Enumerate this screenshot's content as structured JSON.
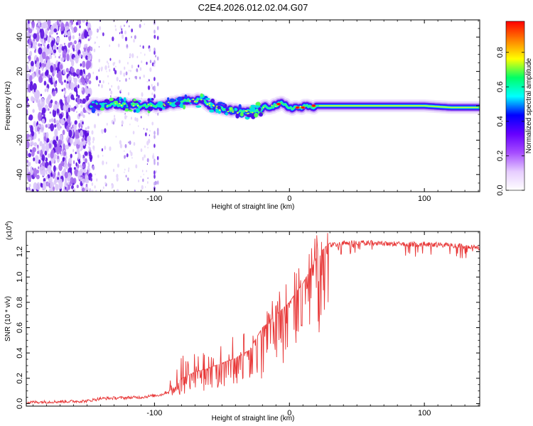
{
  "title": "C2E4.2026.012.02.04.G07",
  "chart_data": [
    {
      "type": "heatmap",
      "name": "spectrogram",
      "xlabel": "Height of straight line (km)",
      "ylabel": "Frequency (Hz)",
      "xlim": [
        -195,
        141
      ],
      "ylim": [
        -50,
        50
      ],
      "xticks": [
        -100,
        0,
        100
      ],
      "xtick_labels": [
        "-100",
        "0",
        "100"
      ],
      "yticks": [
        -40,
        -20,
        0,
        20,
        40
      ],
      "ytick_labels": [
        "-40",
        "-20",
        "0",
        "20",
        "40"
      ],
      "colorbar": {
        "label": "Normalized spectral amplitude",
        "range": [
          0,
          0.98
        ],
        "ticks": [
          0,
          0.2,
          0.4,
          0.6,
          0.8
        ],
        "tick_labels": [
          "0.0",
          "0.2",
          "0.4",
          "0.6",
          "0.8"
        ],
        "colormap": [
          "#ffffff",
          "#e6ccff",
          "#a64dff",
          "#6600ff",
          "#0000ff",
          "#00ffff",
          "#00ff66",
          "#ffff00",
          "#ff8000",
          "#ff0000"
        ]
      },
      "signal_path": {
        "x": [
          -147,
          -130,
          -110,
          -90,
          -75,
          -65,
          -58,
          -50,
          -40,
          -33,
          -25,
          -18,
          -12,
          -6,
          0,
          8,
          20,
          40,
          60,
          80,
          100,
          120,
          141
        ],
        "freq": [
          0,
          1,
          0,
          1,
          3,
          3,
          0,
          -2,
          -3,
          -4,
          -3,
          -1,
          0,
          1,
          -1,
          -1,
          0,
          0,
          0,
          0,
          0,
          -1,
          -1
        ]
      },
      "noise_region_km": [
        -195,
        -147
      ],
      "sparse_region_km": [
        -147,
        -98
      ]
    },
    {
      "type": "line",
      "name": "snr",
      "xlabel": "Height of straight line (km)",
      "ylabel": "SNR (10 * v/v)",
      "scale_label": "(x10",
      "scale_exp": "4",
      "scale_close": ")",
      "xlim": [
        -195,
        141
      ],
      "ylim": [
        -0.02,
        1.36
      ],
      "xticks": [
        -100,
        0,
        100
      ],
      "xtick_labels": [
        "-100",
        "0",
        "100"
      ],
      "yticks": [
        0,
        0.2,
        0.4,
        0.6,
        0.8,
        1.0,
        1.2
      ],
      "ytick_labels": [
        "0.0",
        "0.2",
        "0.4",
        "0.6",
        "0.8",
        "1.0",
        "1.2"
      ],
      "color": "#e83838",
      "envelope": {
        "x": [
          -195,
          -150,
          -140,
          -110,
          -95,
          -85,
          -80,
          -70,
          -60,
          -50,
          -40,
          -30,
          -20,
          -10,
          -5,
          0,
          5,
          10,
          15,
          20,
          25,
          30,
          40,
          60,
          80,
          100,
          120,
          141
        ],
        "y": [
          0.01,
          0.02,
          0.04,
          0.05,
          0.07,
          0.12,
          0.2,
          0.25,
          0.28,
          0.32,
          0.36,
          0.42,
          0.6,
          0.7,
          0.75,
          0.8,
          0.88,
          0.95,
          1.05,
          1.15,
          1.22,
          1.27,
          1.29,
          1.29,
          1.28,
          1.28,
          1.27,
          1.25
        ]
      }
    }
  ]
}
